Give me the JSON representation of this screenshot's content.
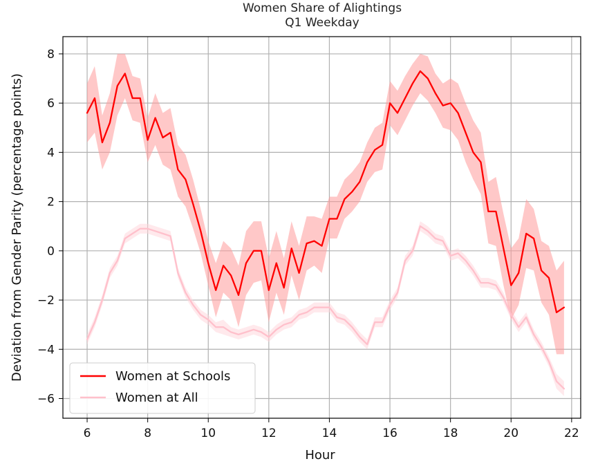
{
  "chart_data": {
    "type": "line",
    "title": "Women Share of Alightings",
    "subtitle": "Q1 Weekday",
    "xlabel": "Hour",
    "ylabel": "Deviation from Gender Parity (percentage points)",
    "xlim": [
      5.2,
      22.3
    ],
    "ylim": [
      -6.8,
      8.7
    ],
    "xticks": [
      6,
      8,
      10,
      12,
      14,
      16,
      18,
      20,
      22
    ],
    "yticks": [
      -6,
      -4,
      -2,
      0,
      2,
      4,
      6,
      8
    ],
    "grid": true,
    "legend_position": "lower-left",
    "series": [
      {
        "name": "Women at Schools",
        "color": "#ff0000",
        "band_color": "#ff9a9a",
        "band_opacity": 0.55,
        "x": [
          6.0,
          6.25,
          6.5,
          6.75,
          7.0,
          7.25,
          7.5,
          7.75,
          8.0,
          8.25,
          8.5,
          8.75,
          9.0,
          9.25,
          9.5,
          9.75,
          10.0,
          10.25,
          10.5,
          10.75,
          11.0,
          11.25,
          11.5,
          11.75,
          12.0,
          12.25,
          12.5,
          12.75,
          13.0,
          13.25,
          13.5,
          13.75,
          14.0,
          14.25,
          14.5,
          14.75,
          15.0,
          15.25,
          15.5,
          15.75,
          16.0,
          16.25,
          16.5,
          16.75,
          17.0,
          17.25,
          17.5,
          17.75,
          18.0,
          18.25,
          18.5,
          18.75,
          19.0,
          19.25,
          19.5,
          19.75,
          20.0,
          20.25,
          20.5,
          20.75,
          21.0,
          21.25,
          21.5,
          21.75
        ],
        "values": [
          5.6,
          6.2,
          4.4,
          5.2,
          6.7,
          7.2,
          6.2,
          6.2,
          4.5,
          5.4,
          4.6,
          4.8,
          3.3,
          2.9,
          1.9,
          0.8,
          -0.5,
          -1.6,
          -0.6,
          -1.0,
          -1.8,
          -0.5,
          0.0,
          0.0,
          -1.6,
          -0.5,
          -1.5,
          0.1,
          -0.9,
          0.3,
          0.4,
          0.2,
          1.3,
          1.3,
          2.1,
          2.4,
          2.8,
          3.6,
          4.1,
          4.3,
          6.0,
          5.6,
          6.2,
          6.8,
          7.3,
          7.0,
          6.4,
          5.9,
          6.0,
          5.6,
          4.8,
          4.0,
          3.6,
          1.6,
          1.6,
          0.1,
          -1.4,
          -0.9,
          0.7,
          0.5,
          -0.8,
          -1.1,
          -2.5,
          -2.3
        ],
        "lower": [
          4.4,
          4.8,
          3.3,
          4.0,
          5.5,
          6.2,
          5.3,
          5.2,
          3.6,
          4.3,
          3.5,
          3.3,
          2.2,
          1.8,
          0.9,
          -0.1,
          -1.4,
          -2.7,
          -1.7,
          -2.0,
          -3.1,
          -1.8,
          -1.3,
          -1.2,
          -2.9,
          -1.7,
          -2.6,
          -1.0,
          -2.0,
          -0.8,
          -0.6,
          -0.9,
          0.5,
          0.5,
          1.3,
          1.6,
          2.0,
          2.8,
          3.2,
          3.3,
          5.1,
          4.7,
          5.3,
          5.9,
          6.4,
          6.1,
          5.6,
          5.0,
          4.9,
          4.5,
          3.6,
          2.9,
          2.3,
          0.3,
          0.2,
          -1.4,
          -2.8,
          -2.2,
          -0.7,
          -0.8,
          -2.1,
          -2.6,
          -4.2,
          -4.2
        ],
        "upper": [
          6.8,
          7.5,
          5.5,
          6.4,
          8.0,
          8.0,
          7.1,
          7.0,
          5.4,
          6.4,
          5.6,
          5.8,
          4.3,
          3.9,
          2.9,
          1.7,
          0.4,
          -0.5,
          0.4,
          0.1,
          -0.6,
          0.8,
          1.2,
          1.2,
          -0.3,
          0.8,
          -0.3,
          1.2,
          0.2,
          1.4,
          1.4,
          1.3,
          2.2,
          2.2,
          2.9,
          3.2,
          3.6,
          4.4,
          5.0,
          5.2,
          6.9,
          6.5,
          7.1,
          7.6,
          8.0,
          7.9,
          7.2,
          6.8,
          7.0,
          6.8,
          6.0,
          5.3,
          4.8,
          2.8,
          3.0,
          1.5,
          0.1,
          0.5,
          2.1,
          1.7,
          0.4,
          0.2,
          -0.8,
          -0.4
        ]
      },
      {
        "name": "Women at All",
        "color": "#ffc0cb",
        "band_color": "#ffd3da",
        "band_opacity": 0.5,
        "x": [
          6.0,
          6.25,
          6.5,
          6.75,
          7.0,
          7.25,
          7.5,
          7.75,
          8.0,
          8.25,
          8.5,
          8.75,
          9.0,
          9.25,
          9.5,
          9.75,
          10.0,
          10.25,
          10.5,
          10.75,
          11.0,
          11.25,
          11.5,
          11.75,
          12.0,
          12.25,
          12.5,
          12.75,
          13.0,
          13.25,
          13.5,
          13.75,
          14.0,
          14.25,
          14.5,
          14.75,
          15.0,
          15.25,
          15.5,
          15.75,
          16.0,
          16.25,
          16.5,
          16.75,
          17.0,
          17.25,
          17.5,
          17.75,
          18.0,
          18.25,
          18.5,
          18.75,
          19.0,
          19.25,
          19.5,
          19.75,
          20.0,
          20.25,
          20.5,
          20.75,
          21.0,
          21.25,
          21.5,
          21.75
        ],
        "values": [
          -3.6,
          -2.9,
          -2.0,
          -0.9,
          -0.4,
          0.5,
          0.7,
          0.9,
          0.9,
          0.8,
          0.7,
          0.6,
          -0.9,
          -1.7,
          -2.2,
          -2.6,
          -2.8,
          -3.1,
          -3.1,
          -3.3,
          -3.4,
          -3.3,
          -3.2,
          -3.3,
          -3.5,
          -3.2,
          -3.0,
          -2.9,
          -2.6,
          -2.5,
          -2.3,
          -2.3,
          -2.3,
          -2.7,
          -2.8,
          -3.1,
          -3.5,
          -3.8,
          -2.9,
          -2.9,
          -2.2,
          -1.7,
          -0.4,
          0.0,
          1.0,
          0.8,
          0.5,
          0.4,
          -0.2,
          -0.1,
          -0.4,
          -0.8,
          -1.3,
          -1.3,
          -1.4,
          -1.9,
          -2.6,
          -3.1,
          -2.7,
          -3.4,
          -3.9,
          -4.5,
          -5.3,
          -5.6
        ],
        "lower": [
          -3.8,
          -3.1,
          -2.2,
          -1.1,
          -0.6,
          0.3,
          0.5,
          0.7,
          0.7,
          0.6,
          0.5,
          0.4,
          -1.1,
          -1.9,
          -2.4,
          -2.8,
          -3.0,
          -3.3,
          -3.4,
          -3.5,
          -3.6,
          -3.5,
          -3.4,
          -3.5,
          -3.7,
          -3.4,
          -3.2,
          -3.1,
          -2.8,
          -2.7,
          -2.5,
          -2.5,
          -2.5,
          -2.9,
          -3.0,
          -3.3,
          -3.7,
          -4.0,
          -3.1,
          -3.1,
          -2.4,
          -1.9,
          -0.6,
          -0.2,
          0.8,
          0.6,
          0.3,
          0.2,
          -0.4,
          -0.3,
          -0.6,
          -1.0,
          -1.5,
          -1.5,
          -1.6,
          -2.1,
          -2.8,
          -3.3,
          -2.9,
          -3.6,
          -4.1,
          -4.7,
          -5.6,
          -5.9
        ],
        "upper": [
          -3.4,
          -2.7,
          -1.8,
          -0.7,
          -0.2,
          0.7,
          0.9,
          1.1,
          1.1,
          1.0,
          0.9,
          0.8,
          -0.7,
          -1.5,
          -2.0,
          -2.4,
          -2.6,
          -2.9,
          -2.8,
          -3.1,
          -3.2,
          -3.1,
          -3.0,
          -3.1,
          -3.3,
          -3.0,
          -2.8,
          -2.7,
          -2.4,
          -2.3,
          -2.1,
          -2.1,
          -2.1,
          -2.5,
          -2.6,
          -2.9,
          -3.3,
          -3.6,
          -2.7,
          -2.7,
          -2.0,
          -1.5,
          -0.2,
          0.2,
          1.2,
          1.0,
          0.7,
          0.6,
          0.0,
          0.1,
          -0.2,
          -0.6,
          -1.1,
          -1.1,
          -1.2,
          -1.7,
          -2.4,
          -2.9,
          -2.5,
          -3.2,
          -3.7,
          -4.3,
          -5.0,
          -5.3
        ]
      }
    ]
  }
}
